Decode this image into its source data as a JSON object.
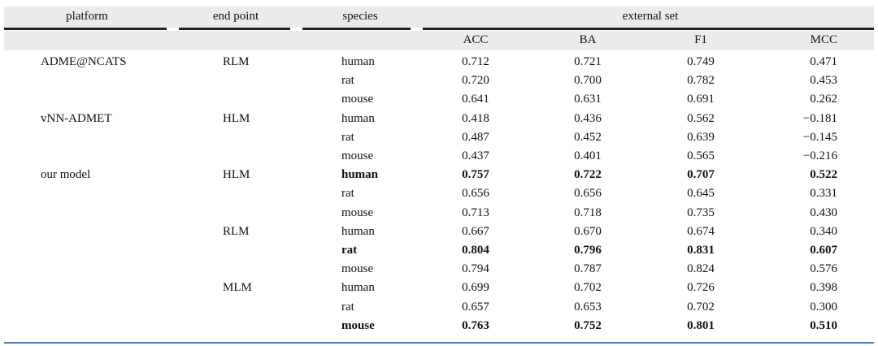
{
  "table": {
    "header": [
      "platform",
      "end point",
      "species",
      "external set"
    ],
    "subheader": [
      "ACC",
      "BA",
      "F1",
      "MCC"
    ],
    "rows": [
      {
        "platform": "ADME@NCATS",
        "end_point": "RLM",
        "species": "human",
        "values": [
          "0.712",
          "0.721",
          "0.749",
          "0.471"
        ]
      },
      {
        "species": "rat",
        "values": [
          "0.720",
          "0.700",
          "0.782",
          "0.453"
        ]
      },
      {
        "species": "mouse",
        "values": [
          "0.641",
          "0.631",
          "0.691",
          "0.262"
        ]
      },
      {
        "platform": "vNN-ADMET",
        "end_point": "HLM",
        "species": "human",
        "values": [
          "0.418",
          "0.436",
          "0.562",
          "−0.181"
        ]
      },
      {
        "species": "rat",
        "values": [
          "0.487",
          "0.452",
          "0.639",
          "−0.145"
        ]
      },
      {
        "species": "mouse",
        "values": [
          "0.437",
          "0.401",
          "0.565",
          "−0.216"
        ]
      },
      {
        "platform": "our model",
        "end_point": "HLM",
        "species": "human",
        "values": [
          "0.757",
          "0.722",
          "0.707",
          "0.522"
        ],
        "bold": true
      },
      {
        "species": "rat",
        "values": [
          "0.656",
          "0.656",
          "0.645",
          "0.331"
        ]
      },
      {
        "species": "mouse",
        "values": [
          "0.713",
          "0.718",
          "0.735",
          "0.430"
        ]
      },
      {
        "end_point": "RLM",
        "species": "human",
        "values": [
          "0.667",
          "0.670",
          "0.674",
          "0.340"
        ]
      },
      {
        "species": "rat",
        "values": [
          "0.804",
          "0.796",
          "0.831",
          "0.607"
        ],
        "bold": true
      },
      {
        "species": "mouse",
        "values": [
          "0.794",
          "0.787",
          "0.824",
          "0.576"
        ]
      },
      {
        "end_point": "MLM",
        "species": "human",
        "values": [
          "0.699",
          "0.702",
          "0.726",
          "0.398"
        ]
      },
      {
        "species": "rat",
        "values": [
          "0.657",
          "0.653",
          "0.702",
          "0.300"
        ]
      },
      {
        "species": "mouse",
        "values": [
          "0.763",
          "0.752",
          "0.801",
          "0.510"
        ],
        "bold": true
      }
    ]
  }
}
